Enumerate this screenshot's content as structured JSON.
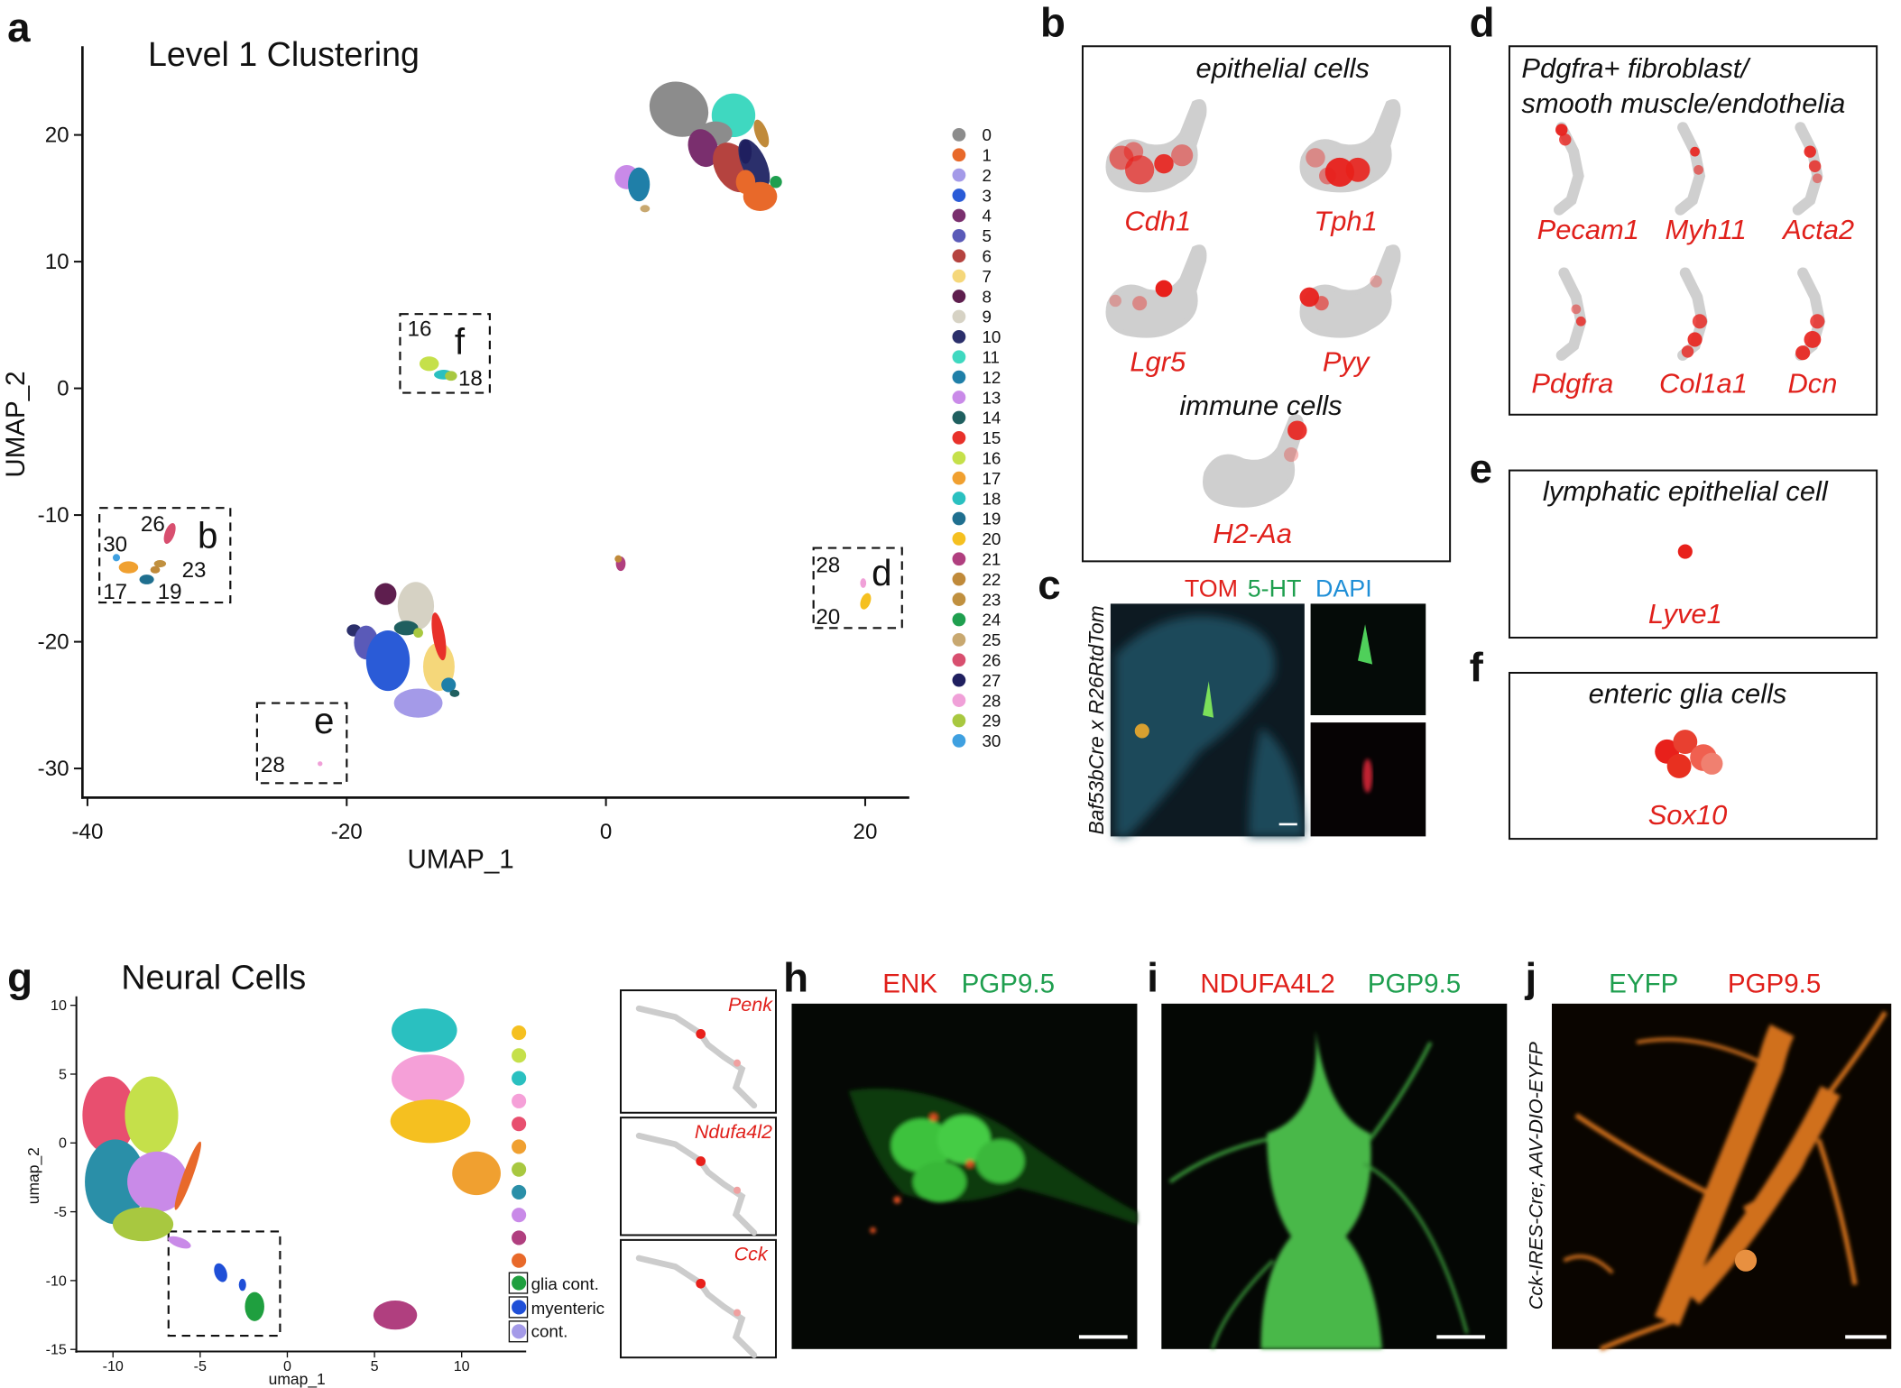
{
  "panels": {
    "a": {
      "letter": "a",
      "title": "Level 1 Clustering",
      "x_label": "UMAP_1",
      "y_label": "UMAP_2",
      "xlim": [
        -40.2,
        23.4
      ],
      "ylim": [
        -32.3,
        27
      ],
      "xticks": [
        -40,
        -20,
        0,
        20
      ],
      "yticks": [
        20,
        10,
        0,
        -10,
        -20,
        -30
      ],
      "clusters": [
        {
          "label": "0",
          "color": "#8c8c8c"
        },
        {
          "label": "1",
          "color": "#e8692a"
        },
        {
          "label": "2",
          "color": "#a49ae8"
        },
        {
          "label": "3",
          "color": "#2a5bd7"
        },
        {
          "label": "4",
          "color": "#7a2f6e"
        },
        {
          "label": "5",
          "color": "#5a5ab8"
        },
        {
          "label": "6",
          "color": "#b5433f"
        },
        {
          "label": "7",
          "color": "#f5d77a"
        },
        {
          "label": "8",
          "color": "#5e1e4e"
        },
        {
          "label": "9",
          "color": "#d6d2c4"
        },
        {
          "label": "10",
          "color": "#2b2f6b"
        },
        {
          "label": "11",
          "color": "#3fd8c0"
        },
        {
          "label": "12",
          "color": "#1f7fa8"
        },
        {
          "label": "13",
          "color": "#c98ae8"
        },
        {
          "label": "14",
          "color": "#1f5f5f"
        },
        {
          "label": "15",
          "color": "#e8312a"
        },
        {
          "label": "16",
          "color": "#c5e04a"
        },
        {
          "label": "17",
          "color": "#f0a030"
        },
        {
          "label": "18",
          "color": "#2ac0c0"
        },
        {
          "label": "19",
          "color": "#1f6f8f"
        },
        {
          "label": "20",
          "color": "#f5c020"
        },
        {
          "label": "21",
          "color": "#b03f7f"
        },
        {
          "label": "22",
          "color": "#c08a3a"
        },
        {
          "label": "23",
          "color": "#c0903f"
        },
        {
          "label": "24",
          "color": "#1f9f4f"
        },
        {
          "label": "25",
          "color": "#c8a870"
        },
        {
          "label": "26",
          "color": "#d84f6f"
        },
        {
          "label": "27",
          "color": "#1f1f5f"
        },
        {
          "label": "28",
          "color": "#f0a0d8"
        },
        {
          "label": "29",
          "color": "#a8c840"
        },
        {
          "label": "30",
          "color": "#3fa0e0"
        }
      ],
      "boxes": [
        {
          "letter": "f",
          "labels": [
            "16",
            "18"
          ]
        },
        {
          "letter": "b",
          "labels": [
            "30",
            "26",
            "23",
            "17",
            "19"
          ]
        },
        {
          "letter": "d",
          "labels": [
            "28",
            "20"
          ]
        },
        {
          "letter": "e",
          "labels": [
            "28"
          ]
        }
      ]
    },
    "b": {
      "letter": "b",
      "epithelial_heading": "epithelial cells",
      "epithelial_genes": [
        "Cdh1",
        "Tph1",
        "Lgr5",
        "Pyy"
      ],
      "immune_heading": "immune cells",
      "immune_genes": [
        "H2-Aa"
      ]
    },
    "c": {
      "letter": "c",
      "stains": [
        "TOM",
        "5-HT",
        "DAPI"
      ],
      "genotype": "Baf53bCre x R26RtdTom"
    },
    "d": {
      "letter": "d",
      "heading": [
        "Pdgfra+ fibroblast/",
        "smooth muscle/endothelia"
      ],
      "genes": [
        "Pecam1",
        "Myh11",
        "Acta2",
        "Pdgfra",
        "Col1a1",
        "Dcn"
      ]
    },
    "e": {
      "letter": "e",
      "heading": "lymphatic epithelial cell",
      "genes": [
        "Lyve1"
      ]
    },
    "f": {
      "letter": "f",
      "heading": "enteric glia cells",
      "genes": [
        "Sox10"
      ]
    },
    "g": {
      "letter": "g",
      "title": "Neural Cells",
      "x_label": "umap_1",
      "y_label": "umap_2",
      "xlim": [
        -12.1,
        13.7
      ],
      "ylim": [
        -15.15,
        10.65
      ],
      "xticks": [
        -10,
        -5,
        0,
        5,
        10
      ],
      "yticks": [
        10,
        5,
        0,
        -5,
        -10,
        -15
      ],
      "clusters": [
        {
          "color": "#f5c020"
        },
        {
          "color": "#c5e04a"
        },
        {
          "color": "#2ac0c0"
        },
        {
          "color": "#f5a0d8"
        },
        {
          "color": "#e84f6f"
        },
        {
          "color": "#f0a030"
        },
        {
          "color": "#a8c840"
        },
        {
          "color": "#2a8fa8"
        },
        {
          "color": "#c98ae8"
        },
        {
          "color": "#b03f7f"
        },
        {
          "color": "#e8692a"
        },
        {
          "label": "glia cont.",
          "color": "#1f9f3f"
        },
        {
          "label": "myenteric",
          "color": "#1f4fd7"
        },
        {
          "label": "cont.",
          "color": "#a49ae8"
        }
      ],
      "genes": [
        "Penk",
        "Ndufa4l2",
        "Cck"
      ]
    },
    "h": {
      "letter": "h",
      "stains": [
        "ENK",
        "PGP9.5"
      ]
    },
    "i": {
      "letter": "i",
      "stains": [
        "NDUFA4L2",
        "PGP9.5"
      ]
    },
    "j": {
      "letter": "j",
      "stains": [
        "EYFP",
        "PGP9.5"
      ],
      "genotype": "Cck-IRES-Cre; AAV-DIO-EYFP"
    }
  }
}
